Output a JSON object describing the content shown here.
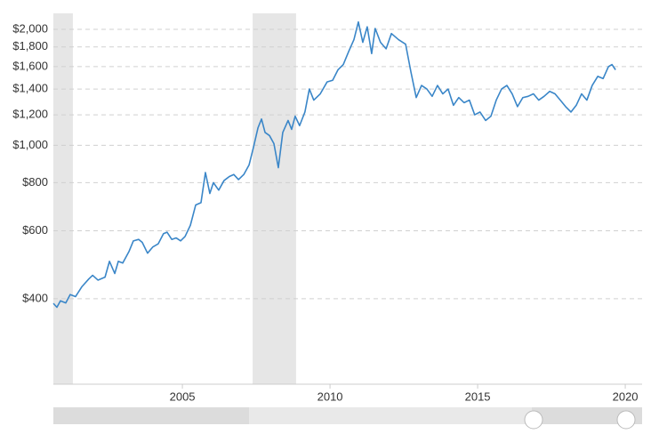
{
  "chart_data": {
    "type": "line",
    "log_scale": true,
    "grid": true,
    "xlim": [
      2000.63,
      2020.57
    ],
    "xticks": [
      2005,
      2010,
      2015,
      2020
    ],
    "ylim": [
      240,
      2200
    ],
    "yticks": [
      {
        "value": 400,
        "label": "$400"
      },
      {
        "value": 600,
        "label": "$600"
      },
      {
        "value": 800,
        "label": "$800"
      },
      {
        "value": 1000,
        "label": "$1,000"
      },
      {
        "value": 1200,
        "label": "$1,200"
      },
      {
        "value": 1400,
        "label": "$1,400"
      },
      {
        "value": 1600,
        "label": "$1,600"
      },
      {
        "value": 1800,
        "label": "$1,800"
      },
      {
        "value": 2000,
        "label": "$2,000"
      }
    ],
    "shaded_ranges": [
      [
        2000.63,
        2001.29
      ],
      [
        2007.38,
        2008.85
      ]
    ],
    "shade_color": "#e6e6e6",
    "x": [
      2000.63,
      2000.75,
      2000.87,
      2001.05,
      2001.2,
      2001.38,
      2001.6,
      2001.83,
      2001.96,
      2002.14,
      2002.38,
      2002.53,
      2002.71,
      2002.83,
      2002.98,
      2003.19,
      2003.34,
      2003.52,
      2003.64,
      2003.82,
      2004.0,
      2004.18,
      2004.36,
      2004.48,
      2004.64,
      2004.79,
      2004.94,
      2005.09,
      2005.27,
      2005.45,
      2005.63,
      2005.78,
      2005.93,
      2006.05,
      2006.23,
      2006.41,
      2006.59,
      2006.74,
      2006.9,
      2007.08,
      2007.26,
      2007.41,
      2007.56,
      2007.68,
      2007.8,
      2007.95,
      2008.1,
      2008.25,
      2008.4,
      2008.58,
      2008.7,
      2008.82,
      2008.97,
      2009.15,
      2009.3,
      2009.45,
      2009.67,
      2009.9,
      2010.09,
      2010.27,
      2010.45,
      2010.63,
      2010.81,
      2010.96,
      2011.11,
      2011.26,
      2011.41,
      2011.53,
      2011.71,
      2011.9,
      2012.08,
      2012.32,
      2012.56,
      2012.74,
      2012.92,
      2013.1,
      2013.28,
      2013.46,
      2013.64,
      2013.82,
      2014.0,
      2014.18,
      2014.36,
      2014.54,
      2014.72,
      2014.9,
      2015.08,
      2015.27,
      2015.45,
      2015.63,
      2015.81,
      2015.99,
      2016.17,
      2016.35,
      2016.53,
      2016.71,
      2016.89,
      2017.07,
      2017.25,
      2017.44,
      2017.62,
      2017.8,
      2017.98,
      2018.16,
      2018.34,
      2018.52,
      2018.7,
      2018.88,
      2019.07,
      2019.25,
      2019.43,
      2019.55,
      2019.67
    ],
    "series": [
      {
        "color": "#3a86c8",
        "values": [
          389,
          380,
          395,
          390,
          410,
          405,
          430,
          450,
          460,
          447,
          455,
          500,
          465,
          500,
          495,
          530,
          565,
          570,
          560,
          525,
          545,
          555,
          590,
          595,
          570,
          575,
          565,
          580,
          620,
          700,
          710,
          850,
          750,
          800,
          765,
          810,
          830,
          840,
          815,
          840,
          890,
          990,
          1110,
          1170,
          1080,
          1060,
          1010,
          875,
          1080,
          1160,
          1100,
          1190,
          1125,
          1220,
          1400,
          1310,
          1360,
          1460,
          1475,
          1570,
          1620,
          1750,
          1880,
          2090,
          1850,
          2030,
          1730,
          2010,
          1850,
          1780,
          1950,
          1880,
          1830,
          1550,
          1330,
          1430,
          1400,
          1340,
          1430,
          1360,
          1400,
          1270,
          1330,
          1290,
          1310,
          1200,
          1220,
          1160,
          1190,
          1310,
          1400,
          1430,
          1360,
          1260,
          1330,
          1340,
          1360,
          1310,
          1340,
          1380,
          1360,
          1310,
          1260,
          1220,
          1270,
          1360,
          1310,
          1430,
          1510,
          1490,
          1600,
          1620,
          1570
        ]
      }
    ]
  }
}
